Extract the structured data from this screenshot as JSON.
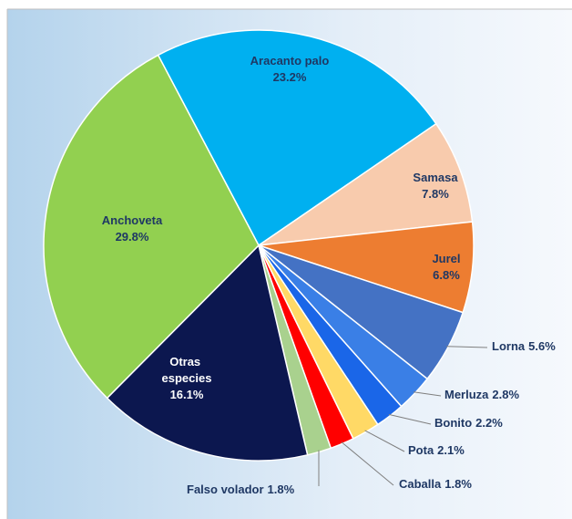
{
  "chart_data": {
    "type": "pie",
    "categories": [
      "Aracanto palo",
      "Samasa",
      "Jurel",
      "Lorna",
      "Merluza",
      "Bonito",
      "Pota",
      "Caballa",
      "Falso volador",
      "Otras especies",
      "Anchoveta"
    ],
    "values": [
      23.2,
      7.8,
      6.8,
      5.6,
      2.8,
      2.2,
      2.1,
      1.8,
      1.8,
      16.1,
      29.8
    ],
    "value_labels": [
      "23.2%",
      "7.8%",
      "6.8%",
      "5.6%",
      "2.8%",
      "2.2%",
      "2.1%",
      "1.8%",
      "1.8%",
      "16.1%",
      "29.8%"
    ],
    "colors": [
      "#00b0f0",
      "#f8cbad",
      "#ed7d31",
      "#4472c4",
      "#3a7fe6",
      "#1a66e8",
      "#ffd966",
      "#ff0000",
      "#a9d18e",
      "#0c174f",
      "#92d050"
    ]
  }
}
